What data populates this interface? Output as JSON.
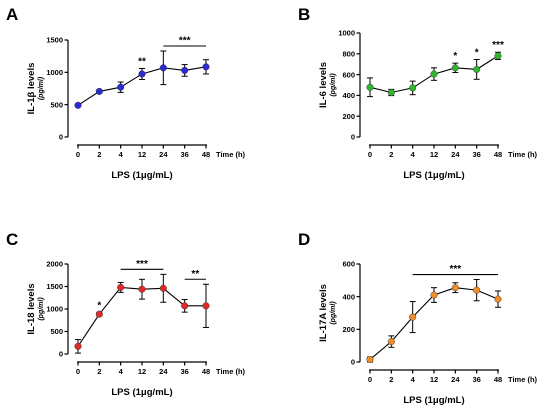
{
  "chart_data": [
    {
      "panel": "A",
      "type": "line",
      "ylabel": "IL-1β levels",
      "yunit": "(pg/ml)",
      "xlabel": "LPS (1μg/mL)",
      "time_label": "Time (h)",
      "categories": [
        "0",
        "2",
        "4",
        "12",
        "24",
        "36",
        "48"
      ],
      "ylim": [
        0,
        1500
      ],
      "yticks": [
        0,
        500,
        1000,
        1500
      ],
      "color": "#2b2bd6",
      "series": [
        {
          "values": [
            490,
            705,
            770,
            975,
            1070,
            1030,
            1085
          ],
          "errors": [
            10,
            15,
            80,
            85,
            260,
            90,
            110
          ]
        }
      ],
      "annotations": [
        {
          "text": "**",
          "at": 3
        },
        {
          "text": "***",
          "from": 4,
          "to": 6,
          "bar": true
        }
      ],
      "grid": false
    },
    {
      "panel": "B",
      "type": "line",
      "ylabel": "IL-6 levels",
      "yunit": "(pg/ml)",
      "xlabel": "LPS (1μg/mL)",
      "time_label": "Time (h)",
      "categories": [
        "0",
        "2",
        "4",
        "12",
        "24",
        "36",
        "48"
      ],
      "ylim": [
        0,
        1000
      ],
      "yticks": [
        0,
        200,
        400,
        600,
        800,
        1000
      ],
      "color": "#2fb52f",
      "series": [
        {
          "values": [
            478,
            428,
            472,
            605,
            665,
            650,
            780
          ],
          "errors": [
            90,
            30,
            65,
            60,
            45,
            95,
            35
          ]
        }
      ],
      "annotations": [
        {
          "text": "*",
          "at": 4
        },
        {
          "text": "*",
          "at": 5
        },
        {
          "text": "***",
          "at": 6
        }
      ],
      "grid": false
    },
    {
      "panel": "C",
      "type": "line",
      "ylabel": "IL-18 levels",
      "yunit": "(pg/ml)",
      "xlabel": "LPS (1μg/mL)",
      "time_label": "Time (h)",
      "categories": [
        "0",
        "2",
        "4",
        "12",
        "24",
        "36",
        "48"
      ],
      "ylim": [
        0,
        2000
      ],
      "yticks": [
        0,
        500,
        1000,
        1500,
        2000
      ],
      "color": "#e02a2a",
      "series": [
        {
          "values": [
            170,
            885,
            1480,
            1440,
            1460,
            1070,
            1070
          ],
          "errors": [
            150,
            40,
            110,
            220,
            310,
            140,
            480
          ]
        }
      ],
      "annotations": [
        {
          "text": "*",
          "at": 1
        },
        {
          "text": "***",
          "from": 2,
          "to": 4,
          "bar": true
        },
        {
          "text": "**",
          "from": 5,
          "to": 6,
          "bar": true
        }
      ],
      "grid": false
    },
    {
      "panel": "D",
      "type": "line",
      "ylabel": "IL-17A levels",
      "yunit": "(pg/ml)",
      "xlabel": "LPS (1μg/mL)",
      "time_label": "Time (h)",
      "categories": [
        "0",
        "2",
        "4",
        "12",
        "24",
        "36",
        "48"
      ],
      "ylim": [
        0,
        600
      ],
      "yticks": [
        0,
        200,
        400,
        600
      ],
      "color": "#f08c2a",
      "series": [
        {
          "values": [
            15,
            125,
            275,
            410,
            455,
            440,
            385
          ],
          "errors": [
            15,
            35,
            95,
            45,
            30,
            65,
            50
          ]
        }
      ],
      "annotations": [
        {
          "text": "***",
          "from": 2,
          "to": 6,
          "bar": true
        }
      ],
      "grid": false
    }
  ]
}
